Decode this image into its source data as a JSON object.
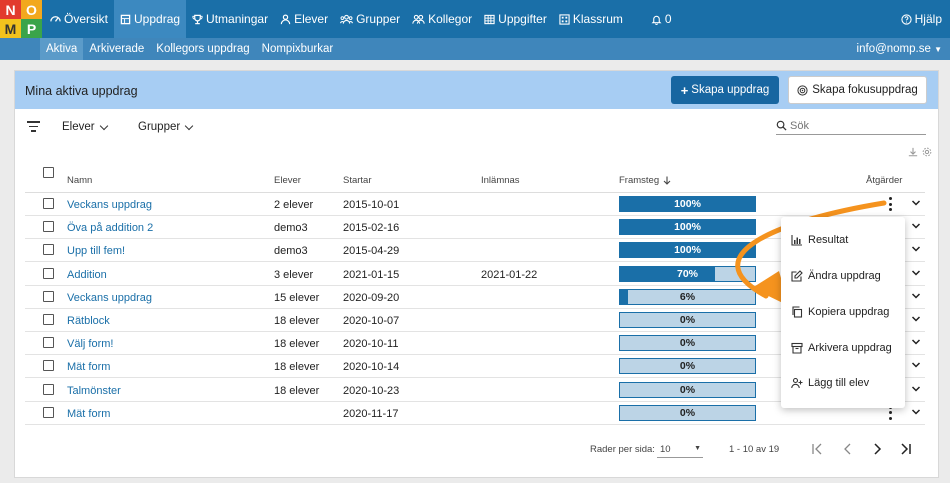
{
  "logo": [
    "N",
    "O",
    "M",
    "P"
  ],
  "nav": {
    "items": [
      {
        "label": "Översikt",
        "icon": "dashboard-icon"
      },
      {
        "label": "Uppdrag",
        "icon": "assignment-icon",
        "active": true
      },
      {
        "label": "Utmaningar",
        "icon": "trophy-icon"
      },
      {
        "label": "Elever",
        "icon": "person-icon"
      },
      {
        "label": "Grupper",
        "icon": "group-icon"
      },
      {
        "label": "Kollegor",
        "icon": "colleagues-icon"
      },
      {
        "label": "Uppgifter",
        "icon": "grid-icon"
      },
      {
        "label": "Klassrum",
        "icon": "classroom-icon"
      },
      {
        "label": "0",
        "icon": "bell-icon"
      }
    ],
    "help": "Hjälp"
  },
  "subnav": {
    "items": [
      "Aktiva",
      "Arkiverade",
      "Kollegors uppdrag",
      "Nompixburkar"
    ],
    "account": "info@nomp.se"
  },
  "card": {
    "title": "Mina aktiva uppdrag",
    "create_button": "Skapa uppdrag",
    "focus_button": "Skapa fokusuppdrag"
  },
  "filters": {
    "students": "Elever",
    "groups": "Grupper",
    "search_placeholder": "Sök"
  },
  "table": {
    "headers": {
      "name": "Namn",
      "students": "Elever",
      "starts": "Startar",
      "due": "Inlämnas",
      "progress": "Framsteg",
      "actions": "Åtgärder"
    },
    "rows": [
      {
        "name": "Veckans uppdrag",
        "students": "2 elever",
        "start": "2015-10-01",
        "due": "",
        "progress": 100,
        "label": "100%"
      },
      {
        "name": "Öva på addition 2",
        "students": "demo3",
        "start": "2015-02-16",
        "due": "",
        "progress": 100,
        "label": "100%"
      },
      {
        "name": "Upp till fem!",
        "students": "demo3",
        "start": "2015-04-29",
        "due": "",
        "progress": 100,
        "label": "100%"
      },
      {
        "name": "Addition",
        "students": "3 elever",
        "start": "2021-01-15",
        "due": "2021-01-22",
        "progress": 70,
        "label": "70%"
      },
      {
        "name": "Veckans uppdrag",
        "students": "15 elever",
        "start": "2020-09-20",
        "due": "",
        "progress": 6,
        "label": "6%"
      },
      {
        "name": "Rätblock",
        "students": "18 elever",
        "start": "2020-10-07",
        "due": "",
        "progress": 0,
        "label": "0%"
      },
      {
        "name": "Välj form!",
        "students": "18 elever",
        "start": "2020-10-11",
        "due": "",
        "progress": 0,
        "label": "0%"
      },
      {
        "name": "Mät form",
        "students": "18 elever",
        "start": "2020-10-14",
        "due": "",
        "progress": 0,
        "label": "0%"
      },
      {
        "name": "Talmönster",
        "students": "18 elever",
        "start": "2020-10-23",
        "due": "",
        "progress": 0,
        "label": "0%"
      },
      {
        "name": "Mät form",
        "students": "",
        "start": "2020-11-17",
        "due": "",
        "progress": 0,
        "label": "0%"
      }
    ]
  },
  "footer": {
    "rows_per_page_label": "Rader per sida:",
    "rows_per_page": "10",
    "range": "1 - 10 av 19"
  },
  "menu": {
    "items": [
      {
        "label": "Resultat",
        "icon": "bar-chart-icon"
      },
      {
        "label": "Ändra uppdrag",
        "icon": "edit-icon"
      },
      {
        "label": "Kopiera uppdrag",
        "icon": "copy-icon"
      },
      {
        "label": "Arkivera uppdrag",
        "icon": "archive-icon"
      },
      {
        "label": "Lägg till elev",
        "icon": "add-person-icon"
      }
    ]
  },
  "colors": {
    "nav": "#1a6fa8",
    "subnav": "#3f86bb",
    "header": "#a7cdf3",
    "progress": "#1a6fa8",
    "progress_bg": "#bcd4e6",
    "arrow": "#f5931e"
  }
}
